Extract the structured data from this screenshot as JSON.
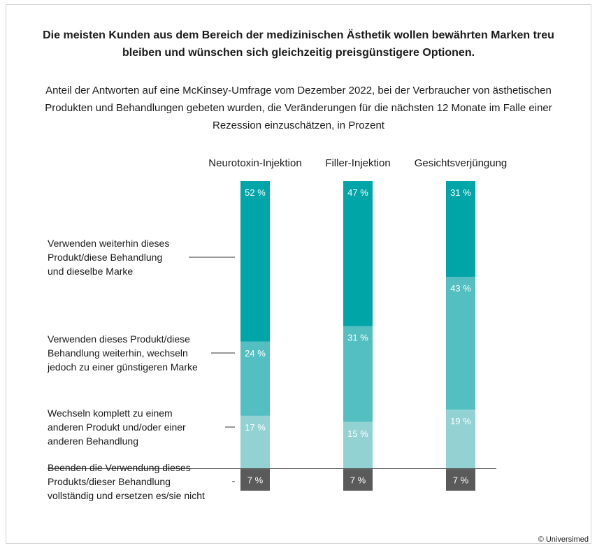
{
  "title": "Die meisten Kunden aus dem Bereich der medizinischen Ästhetik wollen bewährten Marken treu bleiben und wünschen sich gleichzeitig preisgünstigere Optionen.",
  "subtitle": "Anteil der Antworten auf eine McKinsey-Umfrage vom Dezember 2022, bei der Verbraucher von ästhetischen Produkten und Behandlungen gebeten wurden, die Veränderungen für die nächsten 12 Monate im Falle einer Rezession einzuschätzen, in Prozent",
  "footer": "© Universimed",
  "chart_data": {
    "type": "bar",
    "stacked": true,
    "unit": "%",
    "categories": [
      "Neurotoxin-Injektion",
      "Filler-Injektion",
      "Gesichtsverjüngung"
    ],
    "series": [
      {
        "name": "Verwenden weiterhin dieses Produkt/diese Behandlung und dieselbe Marke",
        "color": "#00A5A8",
        "values": [
          52,
          47,
          31
        ],
        "label_lines": [
          "Verwenden weiterhin dieses",
          "Produkt/diese Behandlung",
          "und dieselbe Marke"
        ]
      },
      {
        "name": "Verwenden dieses Produkt/diese Behandlung weiterhin, wechseln jedoch zu einer günstigeren Marke",
        "color": "#53BFC1",
        "values": [
          24,
          31,
          43
        ],
        "label_lines": [
          "Verwenden dieses Produkt/diese",
          "Behandlung weiterhin, wechseln",
          "jedoch zu einer günstigeren Marke"
        ]
      },
      {
        "name": "Wechseln komplett zu einem anderen Produkt und/oder einer anderen Behandlung",
        "color": "#93D2D3",
        "values": [
          17,
          15,
          19
        ],
        "label_lines": [
          "Wechseln komplett zu einem",
          "anderen Produkt und/oder einer",
          "anderen Behandlung"
        ]
      },
      {
        "name": "Beenden die Verwendung dieses Produkts/dieser Behandlung vollständig und ersetzen es/sie nicht",
        "color": "#5A5A5A",
        "values": [
          7,
          7,
          7
        ],
        "label_lines": [
          "Beenden die Verwendung dieses",
          "Produkts/dieser Behandlung",
          "vollständig und ersetzen es/sie nicht"
        ]
      }
    ]
  }
}
